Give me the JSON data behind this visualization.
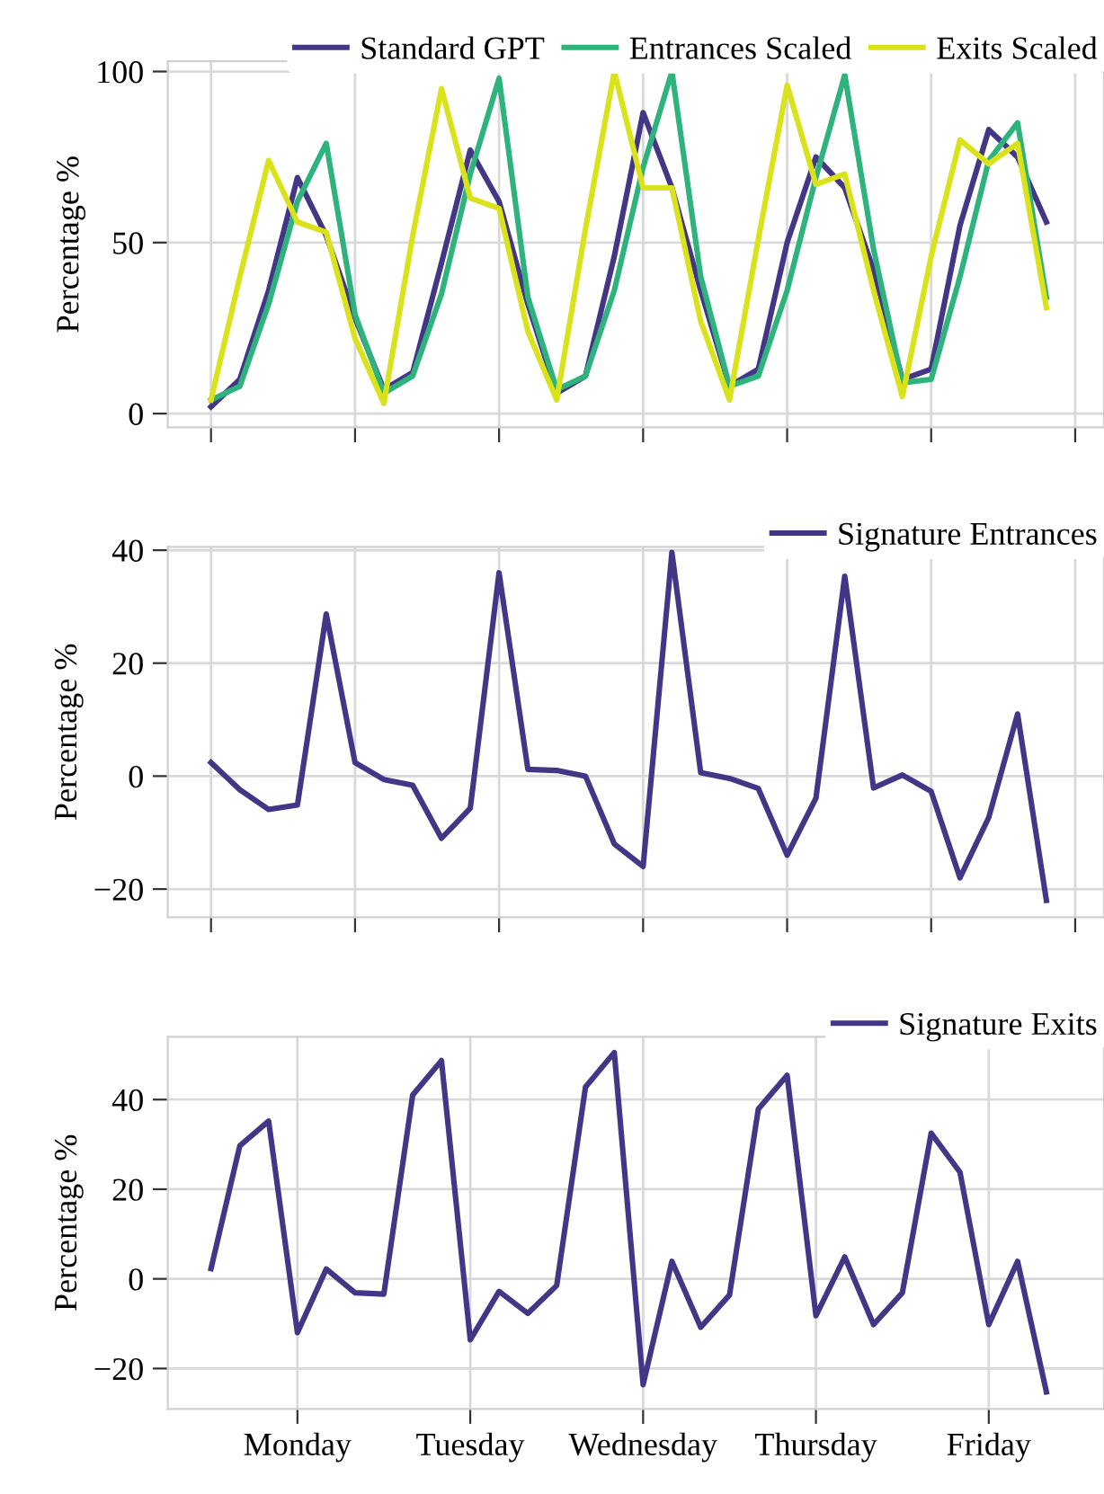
{
  "chart_data": [
    {
      "type": "line",
      "ylabel": "Percentage %",
      "categories": [
        null,
        null,
        null,
        null,
        null,
        null,
        null,
        null,
        null,
        null,
        null,
        null,
        null,
        null,
        null,
        null,
        null,
        null,
        null,
        null,
        null,
        null,
        null,
        null,
        null,
        null,
        null,
        null,
        null,
        null
      ],
      "ylim": [
        -4,
        103
      ],
      "yticks": [
        0,
        50,
        100
      ],
      "grid": true,
      "legend": "top right",
      "line_style": "solid",
      "series": [
        {
          "name": "Standard GPT",
          "color": "#433686",
          "values": [
            2,
            10,
            36,
            69,
            52,
            28,
            7,
            12,
            44,
            77,
            62,
            32,
            6,
            11,
            46,
            88,
            66,
            36,
            8,
            13,
            50,
            75,
            66,
            42,
            10,
            13,
            55,
            83,
            75,
            56
          ]
        },
        {
          "name": "Entrances Scaled",
          "color": "#2eb37c",
          "values": [
            4,
            8,
            32,
            62,
            79,
            29,
            6,
            11,
            35,
            70,
            98,
            34,
            7,
            11,
            36,
            72,
            100,
            40,
            8,
            11,
            36,
            69,
            99,
            48,
            9,
            10,
            40,
            74,
            85,
            34
          ]
        },
        {
          "name": "Exits Scaled",
          "color": "#d9e21a",
          "values": [
            4,
            40,
            74,
            56,
            53,
            22,
            3,
            52,
            95,
            63,
            60,
            24,
            4,
            54,
            100,
            66,
            66,
            27,
            4,
            51,
            96,
            67,
            70,
            36,
            5,
            46,
            80,
            73,
            79,
            31
          ]
        }
      ]
    },
    {
      "type": "line",
      "ylabel": "Percentage %",
      "categories": [
        null,
        null,
        null,
        null,
        null,
        null,
        null,
        null,
        null,
        null,
        null,
        null,
        null,
        null,
        null,
        null,
        null,
        null,
        null,
        null,
        null,
        null,
        null,
        null,
        null,
        null,
        null,
        null,
        null,
        null
      ],
      "ylim": [
        -25,
        40.6
      ],
      "yticks": [
        -20,
        0,
        20,
        40
      ],
      "grid": true,
      "legend": "top right",
      "line_style": "solid",
      "series": [
        {
          "name": "Signature Entrances",
          "color": "#433686",
          "values": [
            2.4,
            -2.4,
            -5.9,
            -5.1,
            28.7,
            2.4,
            -0.6,
            -1.6,
            -11,
            -5.7,
            36,
            1.2,
            1,
            0,
            -12,
            -16,
            39.6,
            0.6,
            -0.4,
            -2.2,
            -14,
            -3.9,
            35.4,
            -2.1,
            0.2,
            -2.7,
            -18,
            -7.3,
            11,
            -22
          ]
        }
      ]
    },
    {
      "type": "line",
      "ylabel": "Percentage %",
      "categories": [
        null,
        null,
        null,
        "Monday",
        null,
        null,
        null,
        null,
        null,
        "Tuesday",
        null,
        null,
        null,
        null,
        null,
        "Wednesday",
        null,
        null,
        null,
        null,
        null,
        "Thursday",
        null,
        null,
        null,
        null,
        null,
        "Friday",
        null,
        null
      ],
      "ylim": [
        -29,
        54
      ],
      "yticks": [
        -20,
        0,
        20,
        40
      ],
      "grid": true,
      "legend": "top right",
      "line_style": "solid",
      "series": [
        {
          "name": "Signature Exits",
          "color": "#433686",
          "values": [
            2.3,
            29.7,
            35.2,
            -12,
            2.2,
            -3.1,
            -3.4,
            41,
            48.7,
            -13.6,
            -2.8,
            -7.7,
            -1.5,
            42.8,
            50.5,
            -23.6,
            3.9,
            -10.8,
            -3.6,
            37.9,
            45.4,
            -8.2,
            4.9,
            -10.2,
            -3.1,
            32.5,
            23.8,
            -10.2,
            3.9,
            -25.2
          ]
        }
      ]
    }
  ]
}
